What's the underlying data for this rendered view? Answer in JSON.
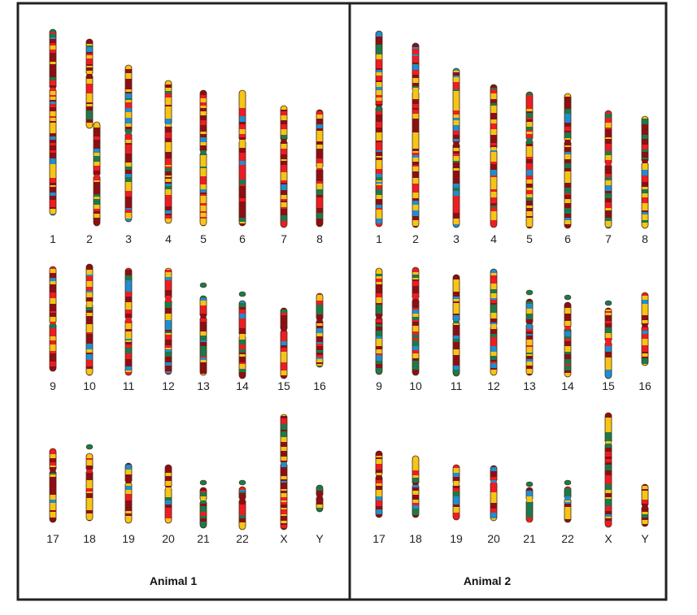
{
  "colors": {
    "frame": "#222222",
    "background": "#ffffff",
    "outline": "#4a2a10",
    "band_yellow": "#f5c518",
    "band_red": "#ee1c24",
    "band_darkred": "#8b0f14",
    "band_green": "#1a7a4c",
    "band_blue": "#1e8fd0"
  },
  "panels": [
    {
      "title": "Animal 1",
      "rows": [
        {
          "labels": [
            "1",
            "2",
            "3",
            "4",
            "5",
            "6",
            "7",
            "8"
          ]
        },
        {
          "labels": [
            "9",
            "10",
            "11",
            "12",
            "13",
            "14",
            "15",
            "16"
          ]
        },
        {
          "labels": [
            "17",
            "18",
            "19",
            "20",
            "21",
            "22",
            "X",
            "Y"
          ]
        }
      ]
    },
    {
      "title": "Animal 2",
      "rows": [
        {
          "labels": [
            "1",
            "2",
            "3",
            "4",
            "5",
            "6",
            "7",
            "8"
          ]
        },
        {
          "labels": [
            "9",
            "10",
            "11",
            "12",
            "13",
            "14",
            "15",
            "16"
          ]
        },
        {
          "labels": [
            "17",
            "18",
            "19",
            "20",
            "21",
            "22",
            "X",
            "Y"
          ]
        }
      ]
    }
  ]
}
